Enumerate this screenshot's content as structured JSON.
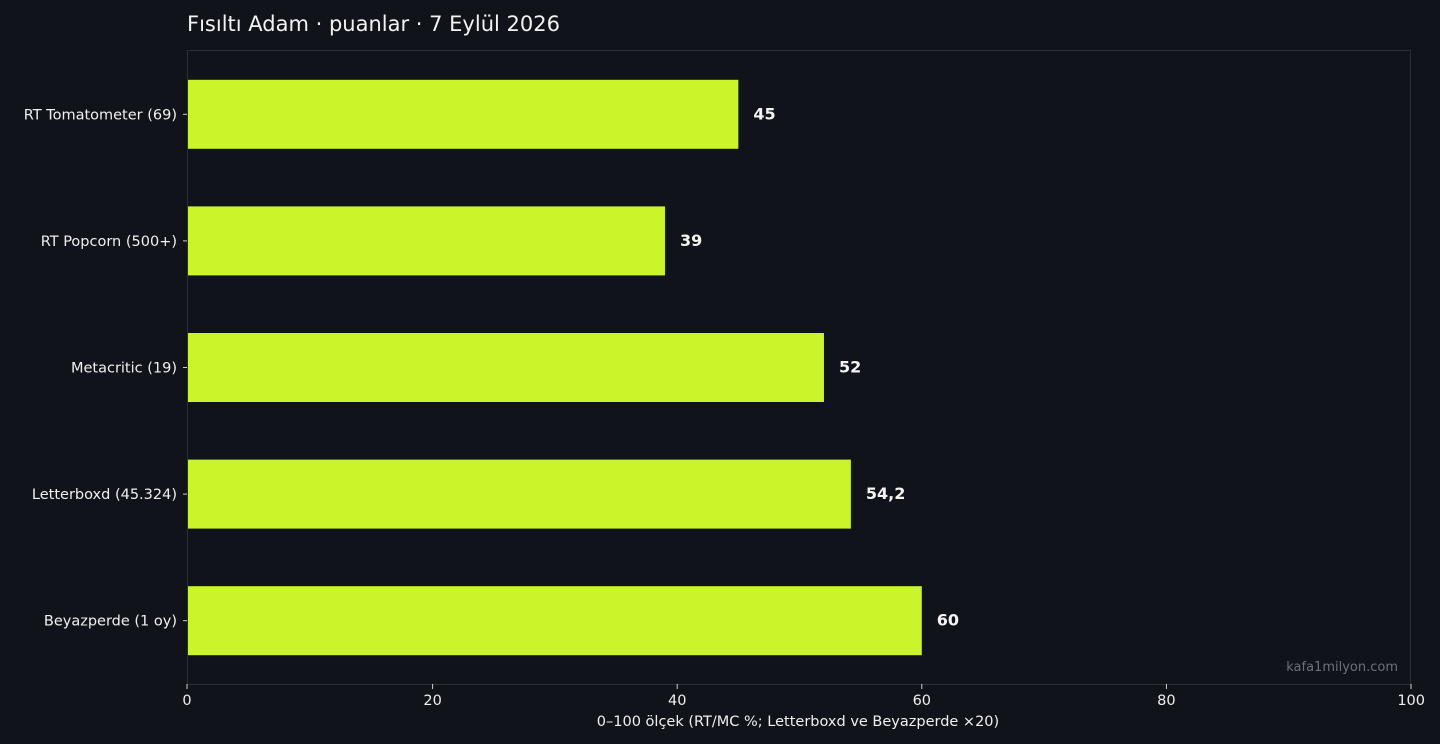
{
  "chart_data": {
    "type": "bar",
    "orientation": "horizontal",
    "title": "Fısıltı Adam · puanlar · 7 Eylül 2026",
    "categories": [
      "RT Tomatometer (69)",
      "RT Popcorn (500+)",
      "Metacritic (19)",
      "Letterboxd (45.324)",
      "Beyazperde (1 oy)"
    ],
    "values": [
      45,
      39,
      52,
      54.2,
      60
    ],
    "value_labels": [
      "45",
      "39",
      "52",
      "54,2",
      "60"
    ],
    "xlabel": "0–100 ölçek (RT/MC %; Letterboxd ve Beyazperde ×20)",
    "ylabel": "",
    "xlim": [
      0,
      100
    ],
    "xticks": [
      0,
      20,
      40,
      60,
      80,
      100
    ],
    "grid": false,
    "watermark": "kafa1milyon.com",
    "colors": {
      "background": "#10131a",
      "bar": "#c9f52a",
      "frame": "#2c2f36",
      "text": "#f0f0f0",
      "watermark": "#6d7078"
    }
  }
}
